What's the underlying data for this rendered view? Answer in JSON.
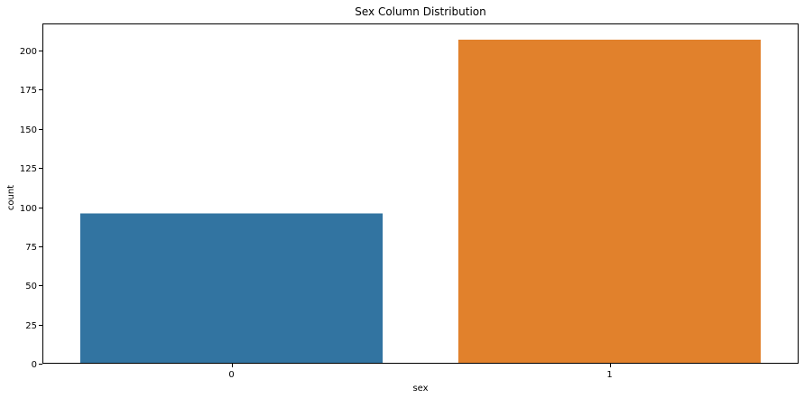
{
  "chart_data": {
    "type": "bar",
    "title": "Sex Column Distribution",
    "xlabel": "sex",
    "ylabel": "count",
    "categories": [
      "0",
      "1"
    ],
    "values": [
      96,
      207
    ],
    "colors": [
      "#3274a1",
      "#e1812c"
    ],
    "ylim": [
      0,
      217.35
    ],
    "yticks": [
      0,
      25,
      50,
      75,
      100,
      125,
      150,
      175,
      200
    ],
    "grid": false,
    "legend": "none"
  }
}
